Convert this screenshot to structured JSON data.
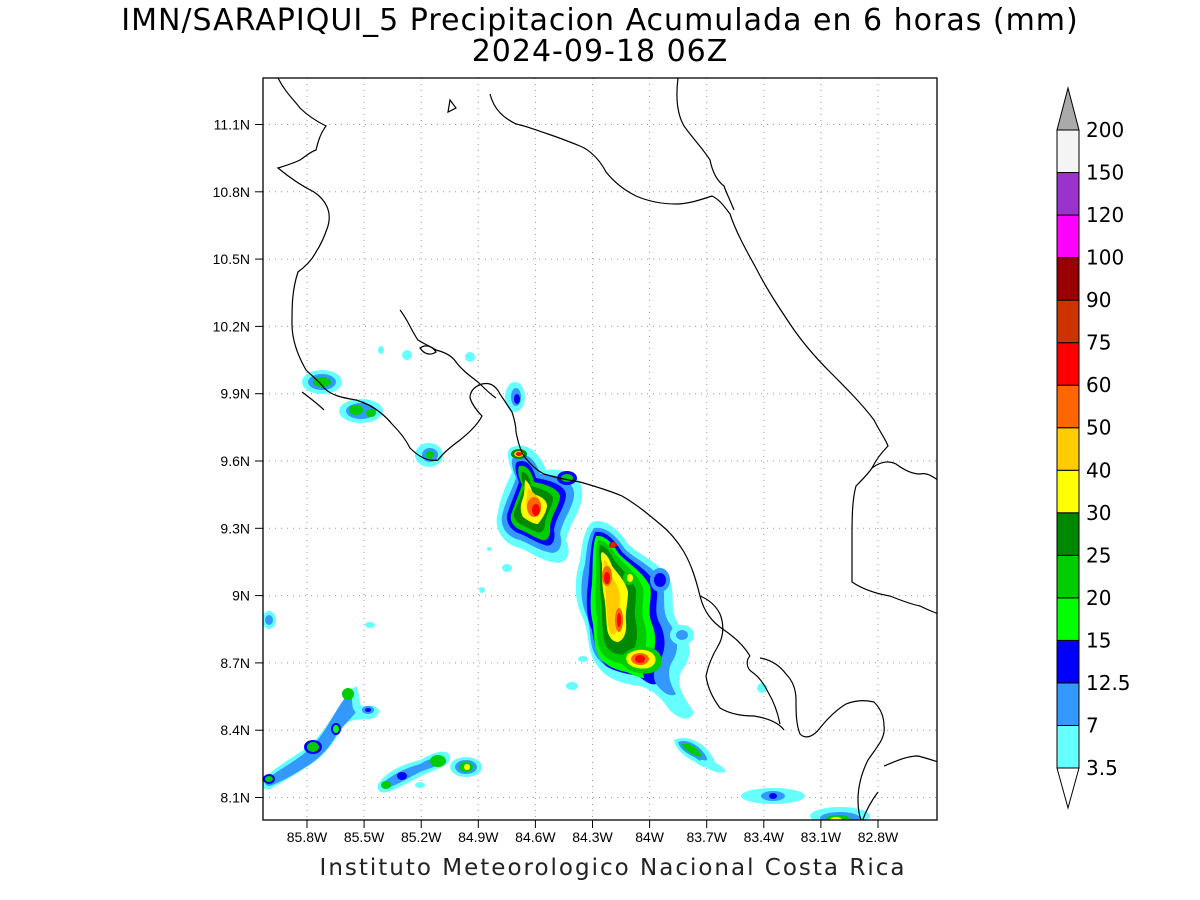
{
  "title": {
    "line1": "IMN/SARAPIQUI_5 Precipitacion Acumulada en 6 horas (mm)",
    "line2": "2024-09-18 06Z"
  },
  "footer": "Instituto Meteorologico Nacional Costa Rica",
  "axes": {
    "lat_ticks": [
      "11.1N",
      "10.8N",
      "10.5N",
      "10.2N",
      "9.9N",
      "9.6N",
      "9.3N",
      "9N",
      "8.7N",
      "8.4N",
      "8.1N"
    ],
    "lon_ticks": [
      "85.8W",
      "85.5W",
      "85.2W",
      "84.9W",
      "84.6W",
      "84.3W",
      "84W",
      "83.7W",
      "83.4W",
      "83.1W",
      "82.8W"
    ]
  },
  "colorbar": {
    "bins": [
      {
        "label": "3.5",
        "color": "#66ffff"
      },
      {
        "label": "7",
        "color": "#3399ff"
      },
      {
        "label": "12.5",
        "color": "#0000ff"
      },
      {
        "label": "15",
        "color": "#00ff00"
      },
      {
        "label": "20",
        "color": "#00cc00"
      },
      {
        "label": "25",
        "color": "#008800"
      },
      {
        "label": "30",
        "color": "#ffff00"
      },
      {
        "label": "40",
        "color": "#ffcc00"
      },
      {
        "label": "50",
        "color": "#ff6600"
      },
      {
        "label": "60",
        "color": "#ff0000"
      },
      {
        "label": "75",
        "color": "#cc3300"
      },
      {
        "label": "90",
        "color": "#990000"
      },
      {
        "label": "100",
        "color": "#ff00ff"
      },
      {
        "label": "120",
        "color": "#9933cc"
      },
      {
        "label": "150",
        "color": "#f4f4f4"
      },
      {
        "label": "200",
        "color": "#aaaaaa"
      }
    ]
  }
}
